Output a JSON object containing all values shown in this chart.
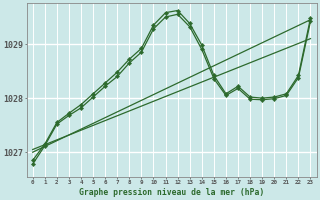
{
  "xlabel": "Graphe pression niveau de la mer (hPa)",
  "bg_color": "#cce8e8",
  "line_color": "#2d6a2d",
  "ylim": [
    1026.55,
    1029.75
  ],
  "xlim": [
    -0.5,
    23.5
  ],
  "yticks": [
    1027,
    1028,
    1029
  ],
  "xticks": [
    0,
    1,
    2,
    3,
    4,
    5,
    6,
    7,
    8,
    9,
    10,
    11,
    12,
    13,
    14,
    15,
    16,
    17,
    18,
    19,
    20,
    21,
    22,
    23
  ],
  "series_straight1": {
    "x": [
      0,
      23
    ],
    "y": [
      1027.0,
      1029.45
    ]
  },
  "series_straight2": {
    "x": [
      0,
      23
    ],
    "y": [
      1027.05,
      1029.1
    ]
  },
  "series_peak1": {
    "x": [
      0,
      1,
      2,
      3,
      4,
      5,
      6,
      7,
      8,
      9,
      10,
      11,
      12,
      13,
      14,
      15,
      16,
      17,
      18,
      19,
      20,
      21,
      22,
      23
    ],
    "y": [
      1026.85,
      1027.15,
      1027.55,
      1027.72,
      1027.88,
      1028.08,
      1028.28,
      1028.48,
      1028.72,
      1028.92,
      1029.35,
      1029.58,
      1029.62,
      1029.38,
      1028.98,
      1028.42,
      1028.08,
      1028.22,
      1028.02,
      1028.0,
      1028.02,
      1028.08,
      1028.42,
      1029.48
    ]
  },
  "series_peak2": {
    "x": [
      0,
      1,
      2,
      3,
      4,
      5,
      6,
      7,
      8,
      9,
      10,
      11,
      12,
      13,
      14,
      15,
      16,
      17,
      18,
      19,
      20,
      21,
      22,
      23
    ],
    "y": [
      1026.78,
      1027.12,
      1027.52,
      1027.68,
      1027.82,
      1028.02,
      1028.22,
      1028.4,
      1028.65,
      1028.85,
      1029.28,
      1029.5,
      1029.55,
      1029.32,
      1028.9,
      1028.36,
      1028.05,
      1028.18,
      1027.98,
      1027.97,
      1027.99,
      1028.05,
      1028.38,
      1029.42
    ]
  }
}
